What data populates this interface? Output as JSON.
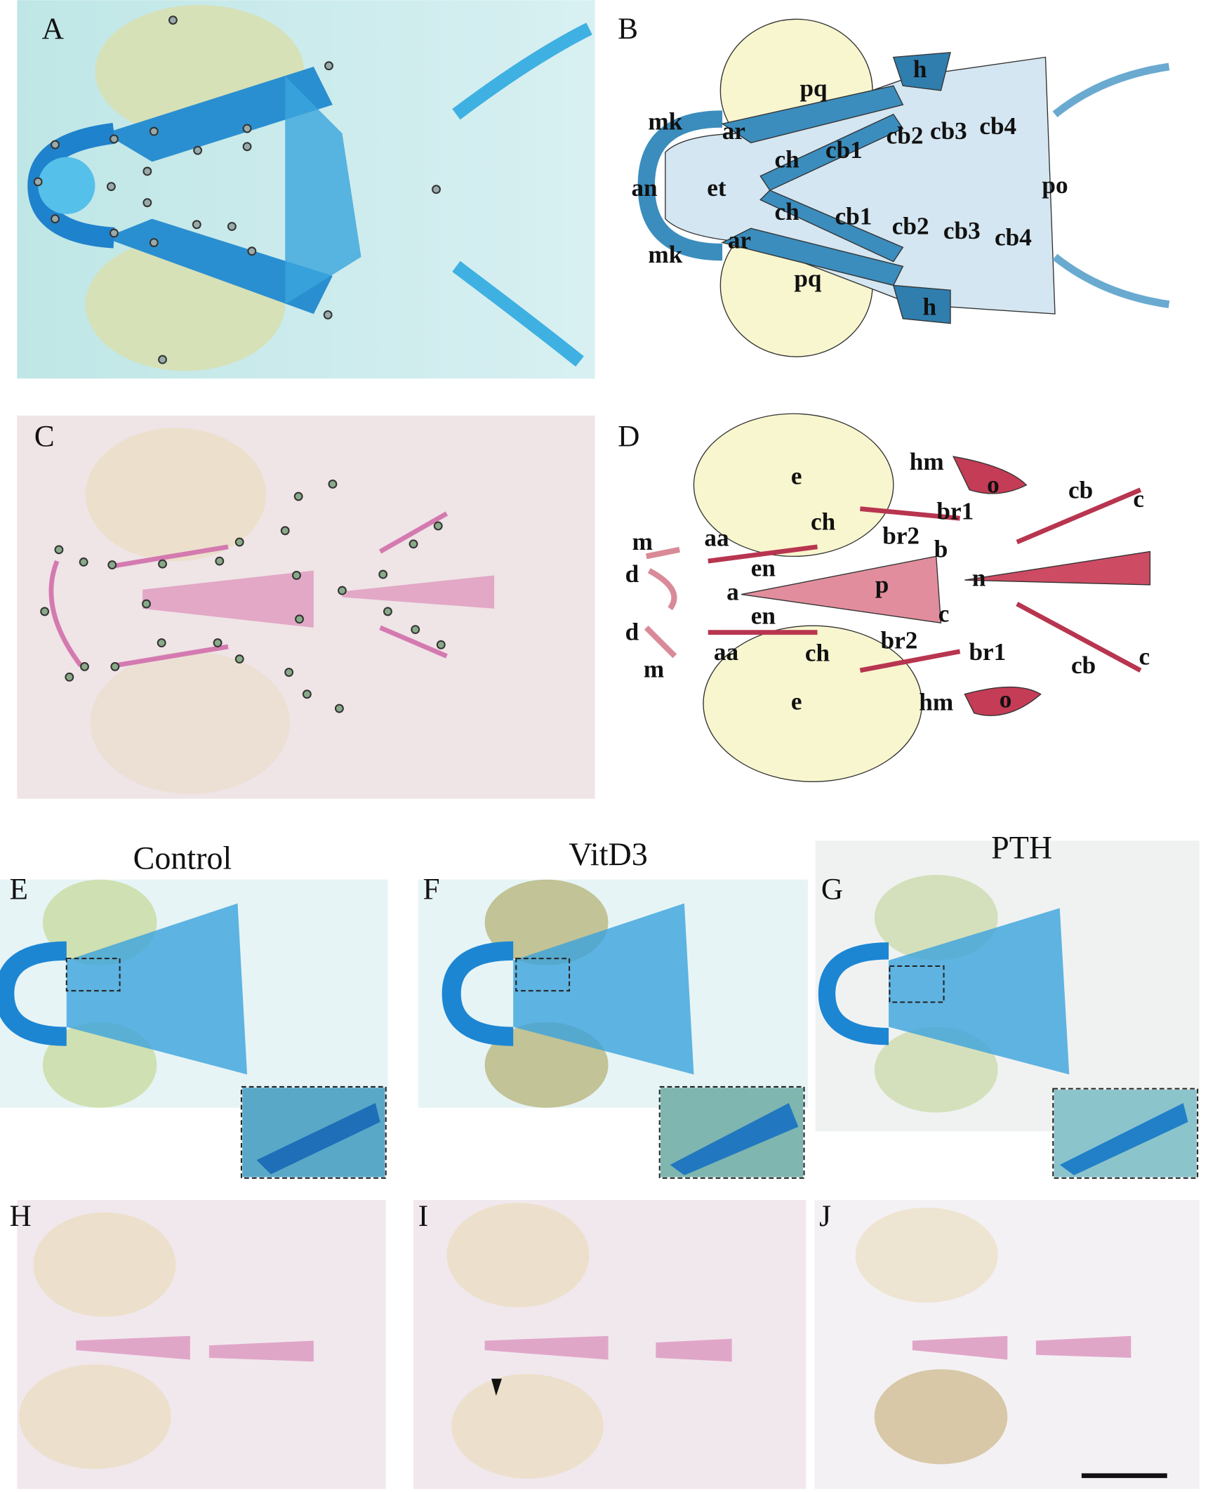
{
  "panels": [
    "A",
    "B",
    "C",
    "D",
    "E",
    "F",
    "G",
    "H",
    "I",
    "J"
  ],
  "diagram_b": {
    "labels": [
      "pq",
      "h",
      "mk",
      "ar",
      "ch",
      "cb1",
      "cb2",
      "cb3",
      "cb4",
      "an",
      "et",
      "po",
      "ch",
      "cb1",
      "cb2",
      "cb3",
      "cb4",
      "mk",
      "ar",
      "pq",
      "h"
    ]
  },
  "diagram_d": {
    "labels": [
      "hm",
      "o",
      "e",
      "cb",
      "c",
      "br1",
      "ch",
      "br2",
      "m",
      "aa",
      "b",
      "d",
      "en",
      "p",
      "n",
      "a",
      "c",
      "en",
      "d",
      "br2",
      "br1",
      "aa",
      "ch",
      "m",
      "cb",
      "c",
      "e",
      "hm",
      "o"
    ]
  },
  "conditions": [
    "Control",
    "VitD3",
    "PTH"
  ]
}
